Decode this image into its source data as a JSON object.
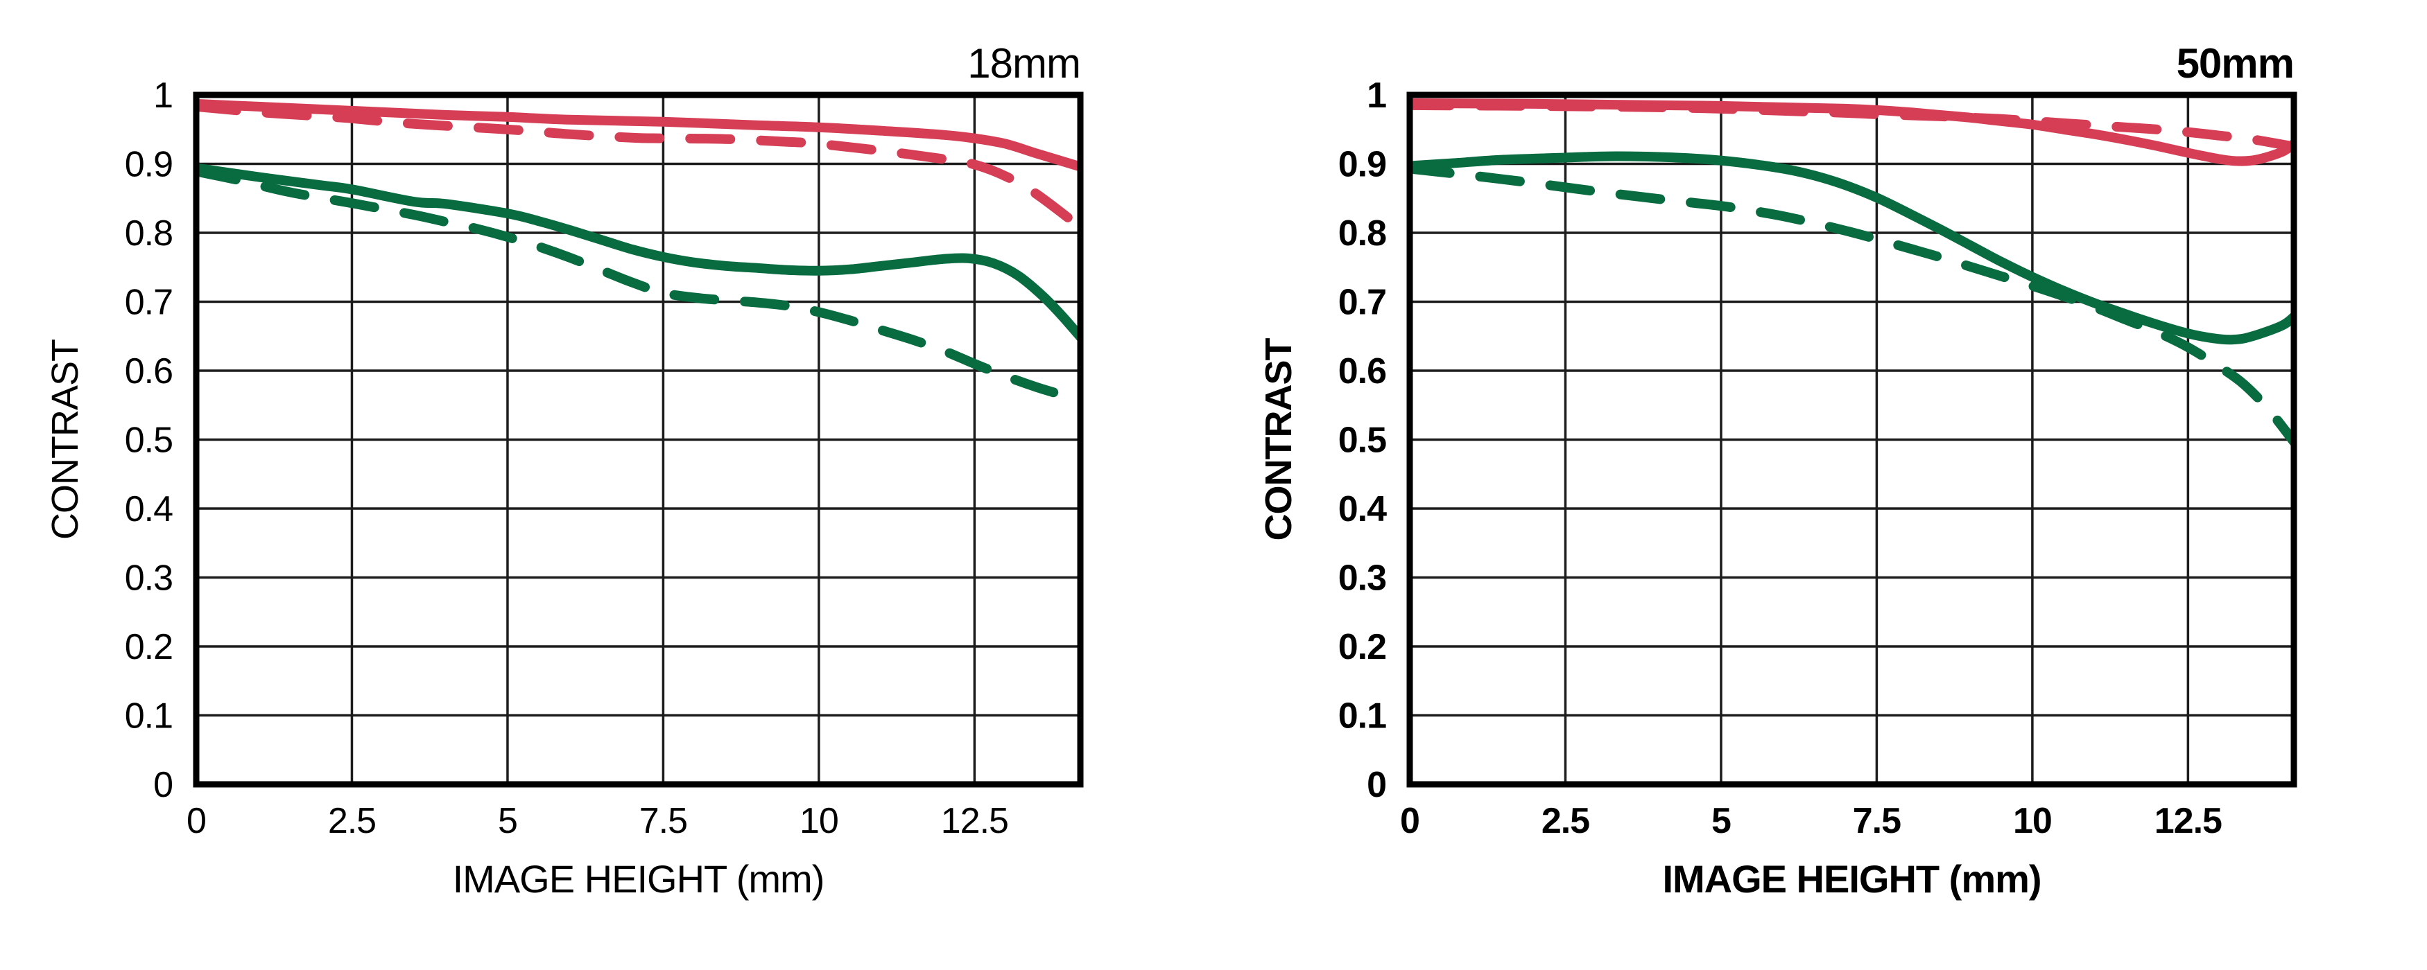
{
  "page": {
    "background": "#ffffff"
  },
  "palette": {
    "red": "#D63E56",
    "green": "#096B40",
    "grid": "#1c1c1c",
    "border": "#000000",
    "text": "#000000"
  },
  "chart_data": [
    {
      "type": "line",
      "title": "18mm",
      "title_bold": false,
      "labels_bold": false,
      "xlabel": "IMAGE HEIGHT (mm)",
      "ylabel": "CONTRAST",
      "xlim": [
        0,
        14.2
      ],
      "ylim": [
        0,
        1
      ],
      "grid": true,
      "legend": "none",
      "xticks": [
        0,
        2.5,
        5,
        7.5,
        10,
        12.5
      ],
      "xtick_labels": [
        "0",
        "2.5",
        "5",
        "7.5",
        "10",
        "12.5"
      ],
      "yticks": [
        1,
        0.9,
        0.8,
        0.7,
        0.6,
        0.5,
        0.4,
        0.3,
        0.2,
        0.1,
        0
      ],
      "ytick_labels": [
        "1",
        "0.9",
        "0.8",
        "0.7",
        "0.6",
        "0.5",
        "0.4",
        "0.3",
        "0.2",
        "0.1",
        "0"
      ],
      "series": [
        {
          "name": "red-solid",
          "color": "red",
          "dash": false,
          "points": [
            [
              0,
              0.987
            ],
            [
              1,
              0.983
            ],
            [
              2,
              0.979
            ],
            [
              3,
              0.975
            ],
            [
              4,
              0.971
            ],
            [
              5,
              0.968
            ],
            [
              6,
              0.964
            ],
            [
              7.5,
              0.961
            ],
            [
              9,
              0.956
            ],
            [
              10,
              0.953
            ],
            [
              11,
              0.948
            ],
            [
              12,
              0.942
            ],
            [
              12.5,
              0.937
            ],
            [
              13,
              0.929
            ],
            [
              13.5,
              0.915
            ],
            [
              14.2,
              0.896
            ]
          ]
        },
        {
          "name": "red-dashed",
          "color": "red",
          "dash": true,
          "points": [
            [
              0,
              0.983
            ],
            [
              1,
              0.975
            ],
            [
              2,
              0.969
            ],
            [
              2.5,
              0.966
            ],
            [
              3.5,
              0.958
            ],
            [
              5,
              0.95
            ],
            [
              6,
              0.943
            ],
            [
              7,
              0.938
            ],
            [
              7.5,
              0.937
            ],
            [
              8.5,
              0.936
            ],
            [
              9.5,
              0.932
            ],
            [
              10,
              0.929
            ],
            [
              11,
              0.919
            ],
            [
              12,
              0.907
            ],
            [
              12.5,
              0.899
            ],
            [
              13,
              0.882
            ],
            [
              13.5,
              0.856
            ],
            [
              14.2,
              0.808
            ]
          ]
        },
        {
          "name": "green-solid",
          "color": "green",
          "dash": false,
          "points": [
            [
              0,
              0.894
            ],
            [
              1,
              0.881
            ],
            [
              2,
              0.869
            ],
            [
              2.5,
              0.863
            ],
            [
              3.5,
              0.845
            ],
            [
              4,
              0.842
            ],
            [
              5,
              0.828
            ],
            [
              5.5,
              0.817
            ],
            [
              6,
              0.804
            ],
            [
              6.5,
              0.79
            ],
            [
              7,
              0.776
            ],
            [
              7.5,
              0.765
            ],
            [
              8,
              0.757
            ],
            [
              8.5,
              0.752
            ],
            [
              9,
              0.749
            ],
            [
              9.5,
              0.746
            ],
            [
              10,
              0.745
            ],
            [
              10.5,
              0.747
            ],
            [
              11,
              0.752
            ],
            [
              11.5,
              0.757
            ],
            [
              12,
              0.762
            ],
            [
              12.4,
              0.763
            ],
            [
              12.8,
              0.756
            ],
            [
              13.2,
              0.738
            ],
            [
              13.6,
              0.708
            ],
            [
              13.9,
              0.68
            ],
            [
              14.2,
              0.649
            ]
          ]
        },
        {
          "name": "green-dashed",
          "color": "green",
          "dash": true,
          "points": [
            [
              0,
              0.889
            ],
            [
              0.7,
              0.876
            ],
            [
              1.5,
              0.859
            ],
            [
              2.5,
              0.843
            ],
            [
              3.5,
              0.826
            ],
            [
              4,
              0.816
            ],
            [
              4.5,
              0.806
            ],
            [
              5,
              0.794
            ],
            [
              5.5,
              0.78
            ],
            [
              6,
              0.764
            ],
            [
              6.5,
              0.746
            ],
            [
              7,
              0.728
            ],
            [
              7.5,
              0.713
            ],
            [
              8,
              0.706
            ],
            [
              8.5,
              0.702
            ],
            [
              9,
              0.699
            ],
            [
              9.5,
              0.694
            ],
            [
              10,
              0.685
            ],
            [
              10.5,
              0.673
            ],
            [
              11,
              0.659
            ],
            [
              11.5,
              0.645
            ],
            [
              12,
              0.629
            ],
            [
              12.5,
              0.61
            ],
            [
              13,
              0.592
            ],
            [
              13.5,
              0.576
            ],
            [
              13.9,
              0.565
            ],
            [
              14.2,
              0.556
            ]
          ]
        }
      ]
    },
    {
      "type": "line",
      "title": "50mm",
      "title_bold": true,
      "labels_bold": true,
      "xlabel": "IMAGE HEIGHT (mm)",
      "ylabel": "CONTRAST",
      "xlim": [
        0,
        14.2
      ],
      "ylim": [
        0,
        1
      ],
      "grid": true,
      "legend": "none",
      "xticks": [
        0,
        2.5,
        5,
        7.5,
        10,
        12.5
      ],
      "xtick_labels": [
        "0",
        "2.5",
        "5",
        "7.5",
        "10",
        "12.5"
      ],
      "yticks": [
        1,
        0.9,
        0.8,
        0.7,
        0.6,
        0.5,
        0.4,
        0.3,
        0.2,
        0.1,
        0
      ],
      "ytick_labels": [
        "1",
        "0.9",
        "0.8",
        "0.7",
        "0.6",
        "0.5",
        "0.4",
        "0.3",
        "0.2",
        "0.1",
        "0"
      ],
      "series": [
        {
          "name": "red-solid",
          "color": "red",
          "dash": false,
          "points": [
            [
              0,
              0.988
            ],
            [
              2,
              0.987
            ],
            [
              4,
              0.985
            ],
            [
              5,
              0.984
            ],
            [
              6,
              0.982
            ],
            [
              7,
              0.98
            ],
            [
              7.5,
              0.978
            ],
            [
              8,
              0.975
            ],
            [
              8.5,
              0.971
            ],
            [
              9,
              0.967
            ],
            [
              9.5,
              0.962
            ],
            [
              10,
              0.957
            ],
            [
              10.5,
              0.95
            ],
            [
              11,
              0.943
            ],
            [
              11.5,
              0.935
            ],
            [
              12,
              0.926
            ],
            [
              12.5,
              0.916
            ],
            [
              13,
              0.907
            ],
            [
              13.3,
              0.904
            ],
            [
              13.6,
              0.906
            ],
            [
              14,
              0.917
            ],
            [
              14.2,
              0.929
            ]
          ]
        },
        {
          "name": "red-dashed",
          "color": "red",
          "dash": true,
          "points": [
            [
              0,
              0.985
            ],
            [
              2,
              0.984
            ],
            [
              4,
              0.982
            ],
            [
              5,
              0.98
            ],
            [
              6,
              0.977
            ],
            [
              7,
              0.974
            ],
            [
              7.5,
              0.972
            ],
            [
              8.5,
              0.969
            ],
            [
              9.5,
              0.965
            ],
            [
              10,
              0.962
            ],
            [
              10.5,
              0.959
            ],
            [
              11,
              0.956
            ],
            [
              11.5,
              0.953
            ],
            [
              12,
              0.95
            ],
            [
              12.5,
              0.946
            ],
            [
              13,
              0.941
            ],
            [
              13.5,
              0.936
            ],
            [
              14.2,
              0.925
            ]
          ]
        },
        {
          "name": "green-solid",
          "color": "green",
          "dash": false,
          "points": [
            [
              0,
              0.897
            ],
            [
              0.7,
              0.901
            ],
            [
              1.5,
              0.906
            ],
            [
              2.5,
              0.909
            ],
            [
              3.2,
              0.911
            ],
            [
              4,
              0.91
            ],
            [
              4.7,
              0.907
            ],
            [
              5.3,
              0.902
            ],
            [
              6,
              0.893
            ],
            [
              6.5,
              0.883
            ],
            [
              7,
              0.869
            ],
            [
              7.5,
              0.851
            ],
            [
              8,
              0.829
            ],
            [
              8.5,
              0.806
            ],
            [
              9,
              0.782
            ],
            [
              9.5,
              0.758
            ],
            [
              10,
              0.736
            ],
            [
              10.5,
              0.716
            ],
            [
              11,
              0.698
            ],
            [
              11.5,
              0.682
            ],
            [
              12,
              0.667
            ],
            [
              12.5,
              0.654
            ],
            [
              12.9,
              0.647
            ],
            [
              13.2,
              0.645
            ],
            [
              13.5,
              0.649
            ],
            [
              14,
              0.665
            ],
            [
              14.2,
              0.678
            ]
          ]
        },
        {
          "name": "green-dashed",
          "color": "green",
          "dash": true,
          "points": [
            [
              0,
              0.893
            ],
            [
              1,
              0.883
            ],
            [
              2,
              0.872
            ],
            [
              3,
              0.86
            ],
            [
              4,
              0.849
            ],
            [
              5,
              0.839
            ],
            [
              5.5,
              0.832
            ],
            [
              6,
              0.824
            ],
            [
              6.5,
              0.814
            ],
            [
              7,
              0.803
            ],
            [
              7.5,
              0.791
            ],
            [
              8,
              0.778
            ],
            [
              8.5,
              0.765
            ],
            [
              9,
              0.751
            ],
            [
              9.5,
              0.737
            ],
            [
              10,
              0.723
            ],
            [
              10.5,
              0.708
            ],
            [
              11,
              0.692
            ],
            [
              11.5,
              0.674
            ],
            [
              12,
              0.656
            ],
            [
              12.5,
              0.634
            ],
            [
              13,
              0.606
            ],
            [
              13.4,
              0.58
            ],
            [
              13.8,
              0.543
            ],
            [
              14.2,
              0.497
            ]
          ]
        }
      ]
    }
  ]
}
